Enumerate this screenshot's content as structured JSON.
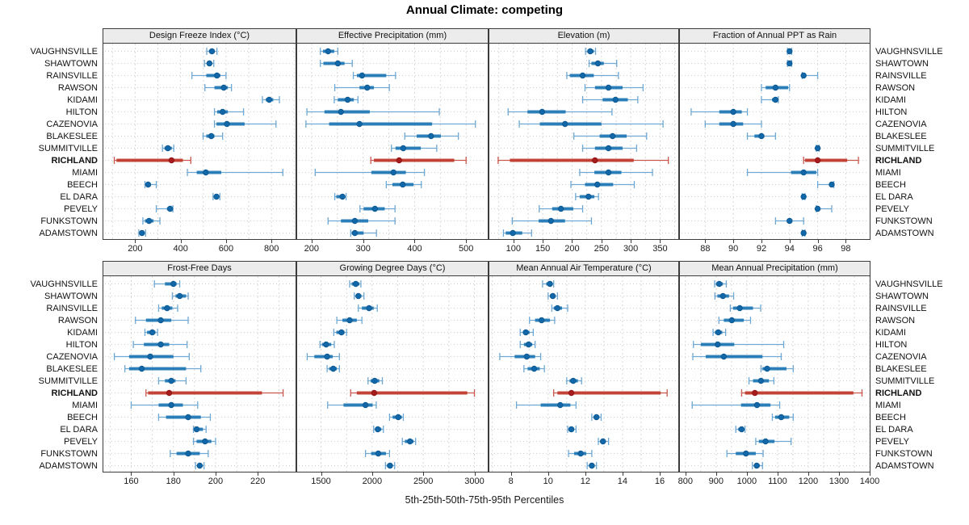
{
  "chart_data": {
    "type": "dot-whisker-trellis",
    "title": "Annual Climate: competing",
    "caption": "5th-25th-50th-75th-95th Percentiles",
    "percentiles": [
      5,
      25,
      50,
      75,
      95
    ],
    "highlight_row": "RICHLAND",
    "legend_position": "none",
    "grid": "on",
    "colors": {
      "blue_whisker": "#6fa8d2",
      "blue_bar": "#1f77b4",
      "blue_dot": "#1267a8",
      "blue_dot_edge": "#0b578f",
      "red_whisker": "#c9574e",
      "red_bar": "#c0392b",
      "red_dot": "#a61b1b",
      "red_dot_edge": "#8c1414",
      "panel_border": "#3c3c3c",
      "header_bg": "#ececec",
      "gridline": "#d8d8d8",
      "rowguide": "#cfcfcf"
    },
    "locations": [
      "VAUGHNSVILLE",
      "SHAWTOWN",
      "RAINSVILLE",
      "RAWSON",
      "KIDAMI",
      "HILTON",
      "CAZENOVIA",
      "BLAKESLEE",
      "SUMMITVILLE",
      "RICHLAND",
      "MIAMI",
      "BEECH",
      "EL DARA",
      "PEVELY",
      "FUNKSTOWN",
      "ADAMSTOWN"
    ],
    "panels": [
      {
        "title": "Design Freeze Index (°C)",
        "domain": [
          60,
          906
        ],
        "ticks": [
          200,
          400,
          600,
          800
        ],
        "grid_step": 100,
        "values": [
          [
            515,
            525,
            538,
            550,
            560
          ],
          [
            505,
            515,
            527,
            538,
            546
          ],
          [
            450,
            513,
            560,
            575,
            600
          ],
          [
            507,
            549,
            590,
            608,
            624
          ],
          [
            760,
            775,
            790,
            808,
            835
          ],
          [
            549,
            561,
            585,
            608,
            677
          ],
          [
            549,
            558,
            604,
            682,
            820
          ],
          [
            499,
            513,
            535,
            549,
            585
          ],
          [
            320,
            329,
            344,
            361,
            370
          ],
          [
            108,
            118,
            360,
            410,
            445
          ],
          [
            430,
            471,
            511,
            579,
            850
          ],
          [
            243,
            248,
            257,
            269,
            293
          ],
          [
            543,
            550,
            558,
            567,
            573
          ],
          [
            293,
            340,
            354,
            362,
            366
          ],
          [
            234,
            243,
            261,
            281,
            309
          ],
          [
            216,
            222,
            230,
            240,
            246
          ]
        ]
      },
      {
        "title": "Effective Precipitation (mm)",
        "domain": [
          172,
          542
        ],
        "ticks": [
          200,
          300,
          400,
          500
        ],
        "grid_step": 50,
        "values": [
          [
            217,
            222,
            232,
            244,
            251
          ],
          [
            217,
            223,
            251,
            264,
            279
          ],
          [
            281,
            288,
            298,
            345,
            363
          ],
          [
            245,
            293,
            308,
            321,
            351
          ],
          [
            244,
            251,
            270,
            282,
            290
          ],
          [
            191,
            225,
            257,
            313,
            448
          ],
          [
            189,
            234,
            293,
            434,
            518
          ],
          [
            381,
            404,
            432,
            451,
            485
          ],
          [
            355,
            363,
            378,
            412,
            443
          ],
          [
            315,
            321,
            370,
            477,
            500
          ],
          [
            207,
            316,
            359,
            383,
            419
          ],
          [
            345,
            357,
            377,
            398,
            413
          ],
          [
            245,
            248,
            260,
            264,
            267
          ],
          [
            294,
            301,
            323,
            342,
            362
          ],
          [
            232,
            257,
            284,
            310,
            362
          ],
          [
            276,
            278,
            284,
            301,
            326
          ]
        ]
      },
      {
        "title": "Elevation (m)",
        "domain": [
          59,
          381
        ],
        "ticks": [
          100,
          150,
          200,
          250,
          300,
          350
        ],
        "grid_step": 25,
        "values": [
          [
            223,
            226,
            231,
            237,
            240
          ],
          [
            229,
            233,
            244,
            254,
            276
          ],
          [
            191,
            196,
            218,
            237,
            279
          ],
          [
            222,
            239,
            262,
            286,
            321
          ],
          [
            218,
            252,
            274,
            295,
            312
          ],
          [
            91,
            124,
            149,
            189,
            268
          ],
          [
            110,
            145,
            188,
            250,
            355
          ],
          [
            203,
            247,
            269,
            293,
            327
          ],
          [
            218,
            239,
            262,
            286,
            310
          ],
          [
            74,
            94,
            239,
            305,
            364
          ],
          [
            213,
            238,
            262,
            284,
            337
          ],
          [
            198,
            222,
            243,
            270,
            306
          ],
          [
            206,
            213,
            228,
            238,
            245
          ],
          [
            144,
            166,
            181,
            202,
            218
          ],
          [
            98,
            143,
            164,
            188,
            233
          ],
          [
            83,
            87,
            99,
            115,
            131
          ]
        ]
      },
      {
        "title": "Fraction of Annual PPT as Rain",
        "domain": [
          86.2,
          99.7
        ],
        "ticks": [
          88,
          90,
          92,
          94,
          96,
          98
        ],
        "grid_step": 2,
        "values": [
          [
            93.85,
            93.95,
            94.0,
            94.05,
            94.15
          ],
          [
            93.85,
            93.95,
            94.0,
            94.05,
            94.15
          ],
          [
            94.9,
            94.95,
            95.0,
            95.1,
            96.0
          ],
          [
            92.0,
            92.3,
            93.0,
            93.9,
            94.0
          ],
          [
            92.0,
            92.75,
            93.0,
            93.1,
            93.2
          ],
          [
            87.0,
            89.0,
            90.0,
            90.6,
            91.0
          ],
          [
            88.0,
            89.0,
            90.0,
            90.7,
            92.0
          ],
          [
            91.0,
            91.5,
            92.0,
            92.2,
            93.0
          ],
          [
            95.9,
            95.95,
            96.0,
            96.05,
            96.1
          ],
          [
            95.0,
            95.1,
            96.0,
            98.1,
            98.9
          ],
          [
            91.0,
            94.1,
            95.0,
            95.9,
            96.0
          ],
          [
            96.0,
            96.85,
            97.0,
            97.1,
            97.15
          ],
          [
            94.9,
            94.95,
            95.0,
            95.05,
            95.1
          ],
          [
            95.9,
            95.95,
            96.0,
            96.1,
            97.0
          ],
          [
            93.0,
            93.8,
            94.0,
            94.2,
            95.0
          ],
          [
            94.9,
            94.95,
            95.0,
            95.05,
            95.1
          ]
        ]
      },
      {
        "title": "Frost-Free Days",
        "domain": [
          146.8,
          237.9
        ],
        "ticks": [
          160,
          180,
          200,
          220
        ],
        "grid_step": 10,
        "values": [
          [
            171,
            176,
            180,
            181.5,
            183
          ],
          [
            179.5,
            181,
            183,
            186,
            187
          ],
          [
            173,
            174.5,
            177,
            179.5,
            182
          ],
          [
            162,
            167,
            174,
            179,
            187
          ],
          [
            166.5,
            167.5,
            170,
            171.5,
            172.5
          ],
          [
            161,
            166,
            174,
            178,
            186.5
          ],
          [
            152,
            159,
            169,
            180,
            187.5
          ],
          [
            157,
            159,
            165,
            186,
            193
          ],
          [
            173,
            176,
            179,
            181,
            186
          ],
          [
            167,
            168,
            178,
            222,
            232
          ],
          [
            160,
            173,
            179,
            184.5,
            191.5
          ],
          [
            173,
            176.5,
            187,
            193,
            197.5
          ],
          [
            189.5,
            190,
            191,
            194,
            195.5
          ],
          [
            189.5,
            191,
            195,
            198,
            200
          ],
          [
            178.5,
            181.5,
            187,
            192.5,
            196.5
          ],
          [
            190.5,
            191.5,
            192.5,
            193.5,
            194.5
          ]
        ]
      },
      {
        "title": "Growing Degree Days (°C)",
        "domain": [
          1267,
          3130
        ],
        "ticks": [
          1500,
          2000,
          2500,
          3000
        ],
        "grid_step": 250,
        "values": [
          [
            1780,
            1800,
            1840,
            1875,
            1890
          ],
          [
            1825,
            1845,
            1865,
            1895,
            1920
          ],
          [
            1865,
            1900,
            1970,
            2015,
            2050
          ],
          [
            1655,
            1710,
            1780,
            1850,
            1900
          ],
          [
            1625,
            1650,
            1700,
            1730,
            1750
          ],
          [
            1490,
            1510,
            1550,
            1600,
            1630
          ],
          [
            1365,
            1435,
            1560,
            1615,
            1680
          ],
          [
            1560,
            1580,
            1620,
            1655,
            1680
          ],
          [
            1960,
            1985,
            2025,
            2070,
            2100
          ],
          [
            1790,
            1850,
            2020,
            2930,
            3000
          ],
          [
            1565,
            1720,
            1935,
            2005,
            2040
          ],
          [
            2170,
            2200,
            2255,
            2290,
            2305
          ],
          [
            2015,
            2030,
            2055,
            2090,
            2110
          ],
          [
            2295,
            2320,
            2370,
            2405,
            2425
          ],
          [
            1935,
            1990,
            2060,
            2135,
            2170
          ],
          [
            2130,
            2145,
            2175,
            2200,
            2220
          ]
        ]
      },
      {
        "title": "Mean Annual Air Temperature (°C)",
        "domain": [
          6.84,
          17.0
        ],
        "ticks": [
          8,
          10,
          12,
          14,
          16
        ],
        "grid_step": 1,
        "values": [
          [
            9.7,
            9.9,
            10.1,
            10.2,
            10.3
          ],
          [
            10.0,
            10.1,
            10.25,
            10.4,
            10.5
          ],
          [
            10.2,
            10.3,
            10.5,
            10.75,
            11.05
          ],
          [
            9.0,
            9.3,
            9.65,
            10.1,
            10.35
          ],
          [
            8.5,
            8.65,
            8.8,
            9.0,
            9.2
          ],
          [
            8.5,
            8.7,
            8.95,
            9.15,
            9.3
          ],
          [
            7.4,
            8.2,
            8.85,
            9.3,
            9.6
          ],
          [
            8.7,
            8.9,
            9.25,
            9.55,
            9.8
          ],
          [
            11.0,
            11.15,
            11.35,
            11.6,
            11.8
          ],
          [
            10.3,
            10.5,
            11.25,
            16.05,
            16.4
          ],
          [
            8.3,
            9.6,
            10.65,
            11.2,
            11.5
          ],
          [
            12.35,
            12.45,
            12.6,
            12.75,
            12.85
          ],
          [
            11.05,
            11.1,
            11.25,
            11.4,
            11.5
          ],
          [
            12.7,
            12.8,
            12.95,
            13.1,
            13.25
          ],
          [
            11.1,
            11.4,
            11.75,
            12.05,
            12.35
          ],
          [
            12.1,
            12.2,
            12.35,
            12.5,
            12.6
          ]
        ]
      },
      {
        "title": "Mean Annual Precipitation (mm)",
        "domain": [
          782,
          1400
        ],
        "ticks": [
          800,
          900,
          1000,
          1100,
          1200,
          1300,
          1400
        ],
        "grid_step": 50,
        "values": [
          [
            895,
            900,
            910,
            922,
            933
          ],
          [
            896,
            904,
            922,
            942,
            957
          ],
          [
            946,
            955,
            977,
            1020,
            1045
          ],
          [
            909,
            925,
            951,
            990,
            1012
          ],
          [
            890,
            896,
            907,
            920,
            931
          ],
          [
            826,
            850,
            905,
            959,
            1120
          ],
          [
            824,
            866,
            925,
            1051,
            1112
          ],
          [
            1046,
            1051,
            1066,
            1129,
            1151
          ],
          [
            1007,
            1020,
            1046,
            1072,
            1088
          ],
          [
            983,
            994,
            1026,
            1347,
            1375
          ],
          [
            822,
            981,
            1033,
            1077,
            1107
          ],
          [
            1083,
            1092,
            1112,
            1138,
            1151
          ],
          [
            964,
            972,
            983,
            990,
            994
          ],
          [
            1029,
            1039,
            1061,
            1090,
            1144
          ],
          [
            935,
            964,
            997,
            1029,
            1053
          ],
          [
            1018,
            1025,
            1032,
            1042,
            1051
          ]
        ]
      }
    ]
  }
}
